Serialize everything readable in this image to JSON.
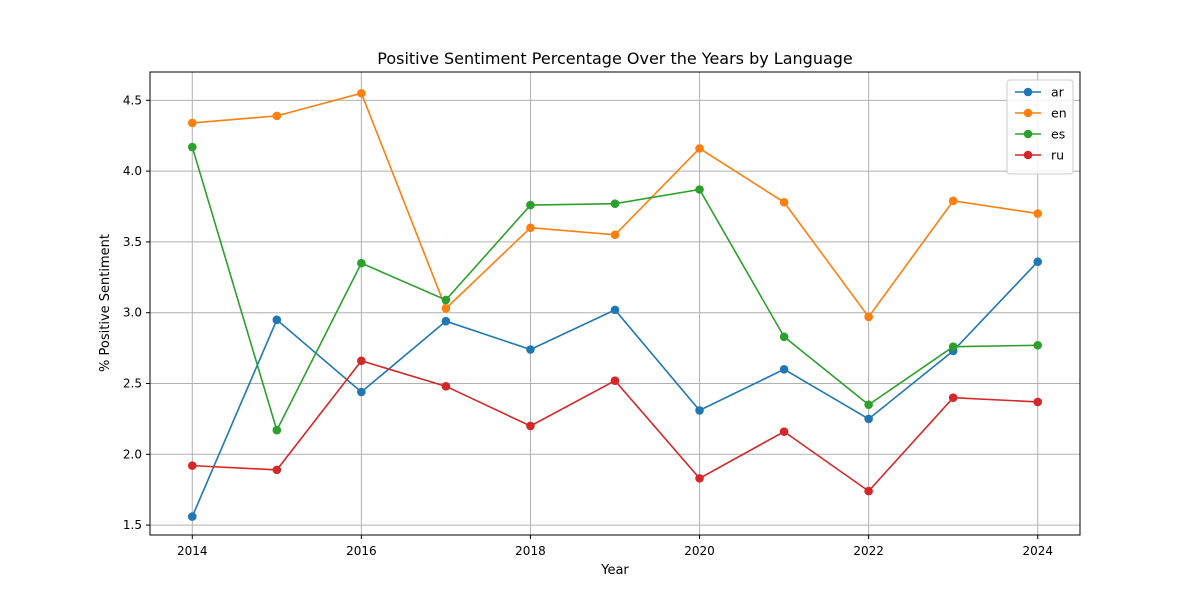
{
  "chart_data": {
    "type": "line",
    "title": "Positive Sentiment Percentage Over the Years by Language",
    "xlabel": "Year",
    "ylabel": "% Positive Sentiment",
    "x": [
      2014,
      2015,
      2016,
      2017,
      2018,
      2019,
      2020,
      2021,
      2022,
      2023,
      2024
    ],
    "xlim": [
      2013.5,
      2024.5
    ],
    "ylim": [
      1.43,
      4.7
    ],
    "xticks": [
      2014,
      2016,
      2018,
      2020,
      2022,
      2024
    ],
    "yticks": [
      1.5,
      2.0,
      2.5,
      3.0,
      3.5,
      4.0,
      4.5
    ],
    "ytick_labels": [
      "1.5",
      "2.0",
      "2.5",
      "3.0",
      "3.5",
      "4.0",
      "4.5"
    ],
    "grid": true,
    "legend_position": "top-right",
    "series": [
      {
        "name": "ar",
        "color": "#1f77b4",
        "values": [
          1.56,
          2.95,
          2.44,
          2.94,
          2.74,
          3.02,
          2.31,
          2.6,
          2.25,
          2.73,
          3.36
        ]
      },
      {
        "name": "en",
        "color": "#ff7f0e",
        "values": [
          4.34,
          4.39,
          4.55,
          3.03,
          3.6,
          3.55,
          4.16,
          3.78,
          2.97,
          3.79,
          3.7
        ]
      },
      {
        "name": "es",
        "color": "#2ca02c",
        "values": [
          4.17,
          2.17,
          3.35,
          3.09,
          3.76,
          3.77,
          3.87,
          2.83,
          2.35,
          2.76,
          2.77
        ]
      },
      {
        "name": "ru",
        "color": "#d62728",
        "values": [
          1.92,
          1.89,
          2.66,
          2.48,
          2.2,
          2.52,
          1.83,
          2.16,
          1.74,
          2.4,
          2.37
        ]
      }
    ]
  }
}
